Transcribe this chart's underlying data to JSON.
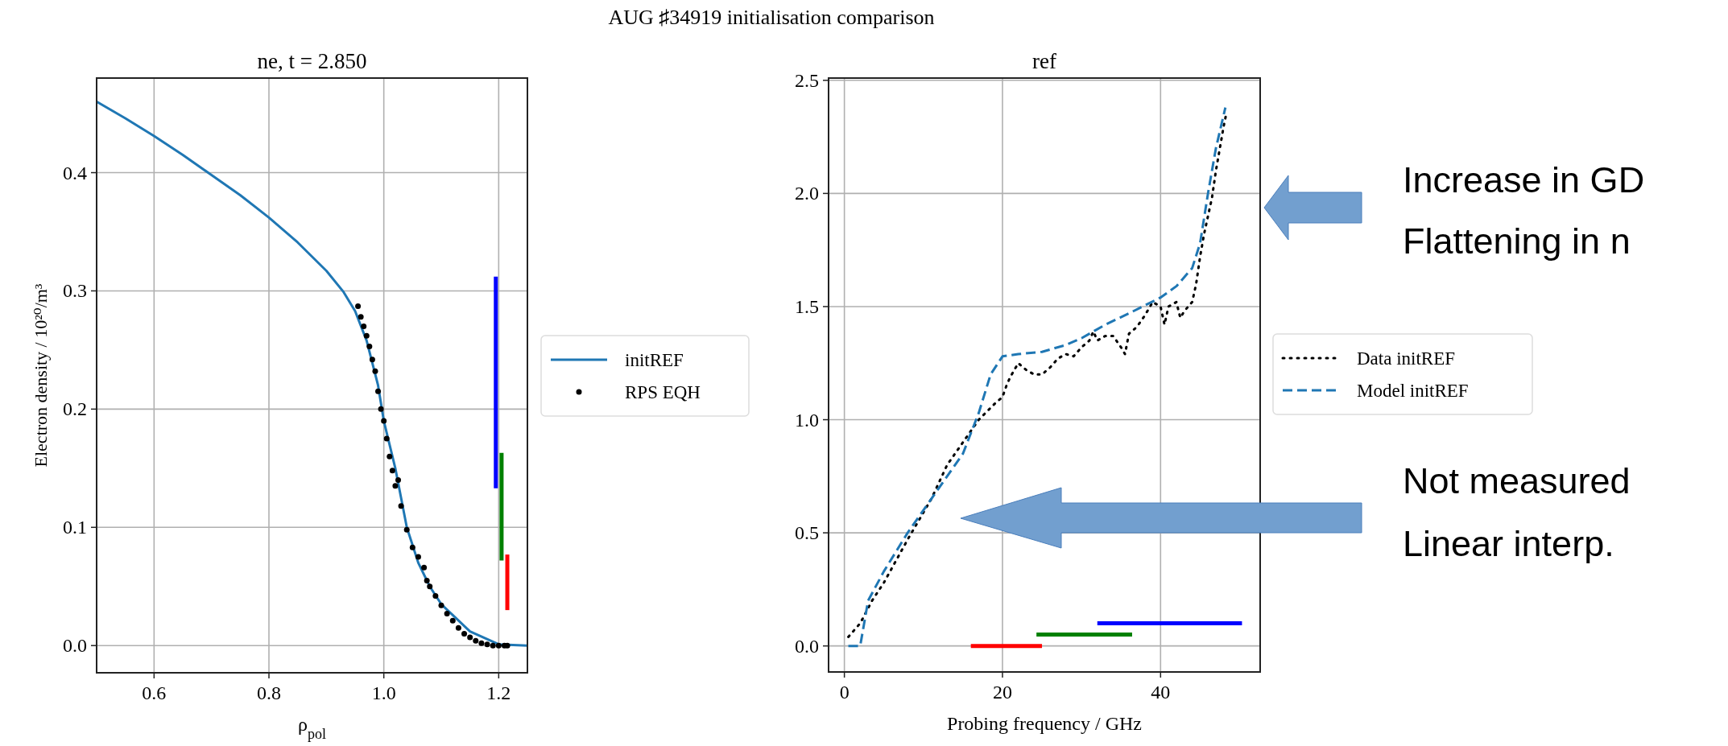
{
  "chart_data": [
    {
      "type": "line",
      "title": "ne, t = 2.850",
      "xlabel": "ρ$_{pol}$",
      "ylabel": "Electron density / 10²⁰/m³",
      "annotations": [
        "AUG ♯34919 initialisation comparison"
      ],
      "xlim": [
        0.5,
        1.25
      ],
      "ylim": [
        -0.023,
        0.48
      ],
      "xticks": [
        0.6,
        0.8,
        {
          "value": 1,
          "label": "1.0"
        },
        1.2
      ],
      "yticks": [
        {
          "value": 0,
          "label": "0.0"
        },
        0.1,
        0.2,
        0.3,
        0.4
      ],
      "grid": true,
      "legend": "right",
      "series": [
        {
          "name": "initREF",
          "type": "line",
          "color": "#1f77b4",
          "x": [
            0.5,
            0.55,
            0.6,
            0.65,
            0.7,
            0.75,
            0.8,
            0.85,
            0.9,
            0.93,
            0.95,
            0.97,
            0.99,
            1.0,
            1.02,
            1.04,
            1.06,
            1.08,
            1.1,
            1.15,
            1.2,
            1.25
          ],
          "values": [
            0.46,
            0.446,
            0.431,
            0.415,
            0.398,
            0.381,
            0.362,
            0.341,
            0.317,
            0.299,
            0.283,
            0.258,
            0.22,
            0.19,
            0.15,
            0.1,
            0.07,
            0.05,
            0.035,
            0.012,
            0.001,
            0.0
          ]
        },
        {
          "name": "RPS EQH",
          "type": "scatter",
          "marker": "circle",
          "color": "#000000",
          "x": [
            0.955,
            0.96,
            0.965,
            0.97,
            0.975,
            0.98,
            0.985,
            0.99,
            0.995,
            1.0,
            1.005,
            1.01,
            1.015,
            1.02,
            1.025,
            1.03,
            1.04,
            1.05,
            1.06,
            1.07,
            1.075,
            1.08,
            1.09,
            1.1,
            1.11,
            1.12,
            1.13,
            1.14,
            1.15,
            1.16,
            1.17,
            1.18,
            1.19,
            1.2,
            1.21,
            1.215
          ],
          "values": [
            0.287,
            0.278,
            0.27,
            0.262,
            0.253,
            0.242,
            0.232,
            0.215,
            0.2,
            0.19,
            0.175,
            0.16,
            0.148,
            0.135,
            0.14,
            0.118,
            0.098,
            0.083,
            0.075,
            0.066,
            0.055,
            0.05,
            0.042,
            0.034,
            0.027,
            0.021,
            0.015,
            0.01,
            0.007,
            0.004,
            0.002,
            0.001,
            0.0,
            0.0,
            0.0,
            0.0
          ]
        },
        {
          "type": "line",
          "color": "#0000ff",
          "x": [
            1.195,
            1.195
          ],
          "values": [
            0.133,
            0.312
          ]
        },
        {
          "type": "line",
          "color": "#008000",
          "x": [
            1.205,
            1.205
          ],
          "values": [
            0.072,
            0.163
          ]
        },
        {
          "type": "line",
          "color": "#ff0000",
          "x": [
            1.215,
            1.215
          ],
          "values": [
            0.03,
            0.077
          ]
        }
      ]
    },
    {
      "type": "line",
      "title": "ref",
      "xlabel": "Probing frequency / GHz",
      "annotations": [
        "Increase in GD",
        "Flattening in n",
        "Not measured",
        "Linear interp."
      ],
      "xlim": [
        -2,
        52.6
      ],
      "ylim": [
        -0.115,
        2.51
      ],
      "xticks": [
        0,
        20,
        40
      ],
      "yticks": [
        {
          "value": 0,
          "label": "0.0"
        },
        0.5,
        {
          "value": 1,
          "label": "1.0"
        },
        1.5,
        {
          "value": 2,
          "label": "2.0"
        },
        2.5
      ],
      "grid": true,
      "legend": "right",
      "series": [
        {
          "name": "Data initREF",
          "type": "line",
          "line_style": "dotted",
          "color": "#000000",
          "x": [
            0.5,
            2,
            3.5,
            5,
            8,
            11,
            13,
            15,
            17,
            19,
            20,
            20.5,
            21,
            22,
            23,
            24,
            25,
            26,
            27,
            28,
            29,
            30,
            31,
            31.5,
            32,
            33,
            34,
            35,
            35.5,
            36,
            37,
            38,
            39,
            40,
            40.5,
            41,
            42,
            42.5,
            43,
            44,
            44.5,
            45,
            45.5,
            46,
            46.5,
            47,
            47.5,
            48,
            48.3
          ],
          "values": [
            0.04,
            0.1,
            0.2,
            0.28,
            0.47,
            0.65,
            0.8,
            0.9,
            1.0,
            1.07,
            1.1,
            1.15,
            1.19,
            1.25,
            1.22,
            1.2,
            1.2,
            1.23,
            1.27,
            1.29,
            1.28,
            1.32,
            1.35,
            1.39,
            1.35,
            1.37,
            1.37,
            1.32,
            1.29,
            1.38,
            1.41,
            1.46,
            1.52,
            1.5,
            1.42,
            1.5,
            1.52,
            1.45,
            1.48,
            1.52,
            1.6,
            1.72,
            1.82,
            1.9,
            1.98,
            2.1,
            2.2,
            2.3,
            2.35
          ]
        },
        {
          "name": "Model initREF",
          "type": "line",
          "line_style": "dashed",
          "color": "#1f77b4",
          "x": [
            0.5,
            2,
            3,
            5,
            8,
            12,
            15,
            17,
            18.5,
            20,
            22,
            25,
            28,
            30,
            33,
            36,
            40,
            42,
            44,
            45,
            46,
            47,
            48.2
          ],
          "values": [
            0,
            0,
            0.2,
            0.33,
            0.5,
            0.7,
            0.85,
            1.03,
            1.2,
            1.28,
            1.29,
            1.3,
            1.33,
            1.36,
            1.42,
            1.47,
            1.54,
            1.59,
            1.67,
            1.78,
            2.0,
            2.2,
            2.38
          ]
        },
        {
          "type": "line",
          "color": "#ff0000",
          "x": [
            16,
            25
          ],
          "values": [
            0,
            0
          ]
        },
        {
          "type": "line",
          "color": "#008000",
          "x": [
            24.3,
            36.4
          ],
          "values": [
            0.05,
            0.05
          ]
        },
        {
          "type": "line",
          "color": "#0000ff",
          "x": [
            32,
            50.3
          ],
          "values": [
            0.1,
            0.1
          ]
        }
      ]
    }
  ]
}
